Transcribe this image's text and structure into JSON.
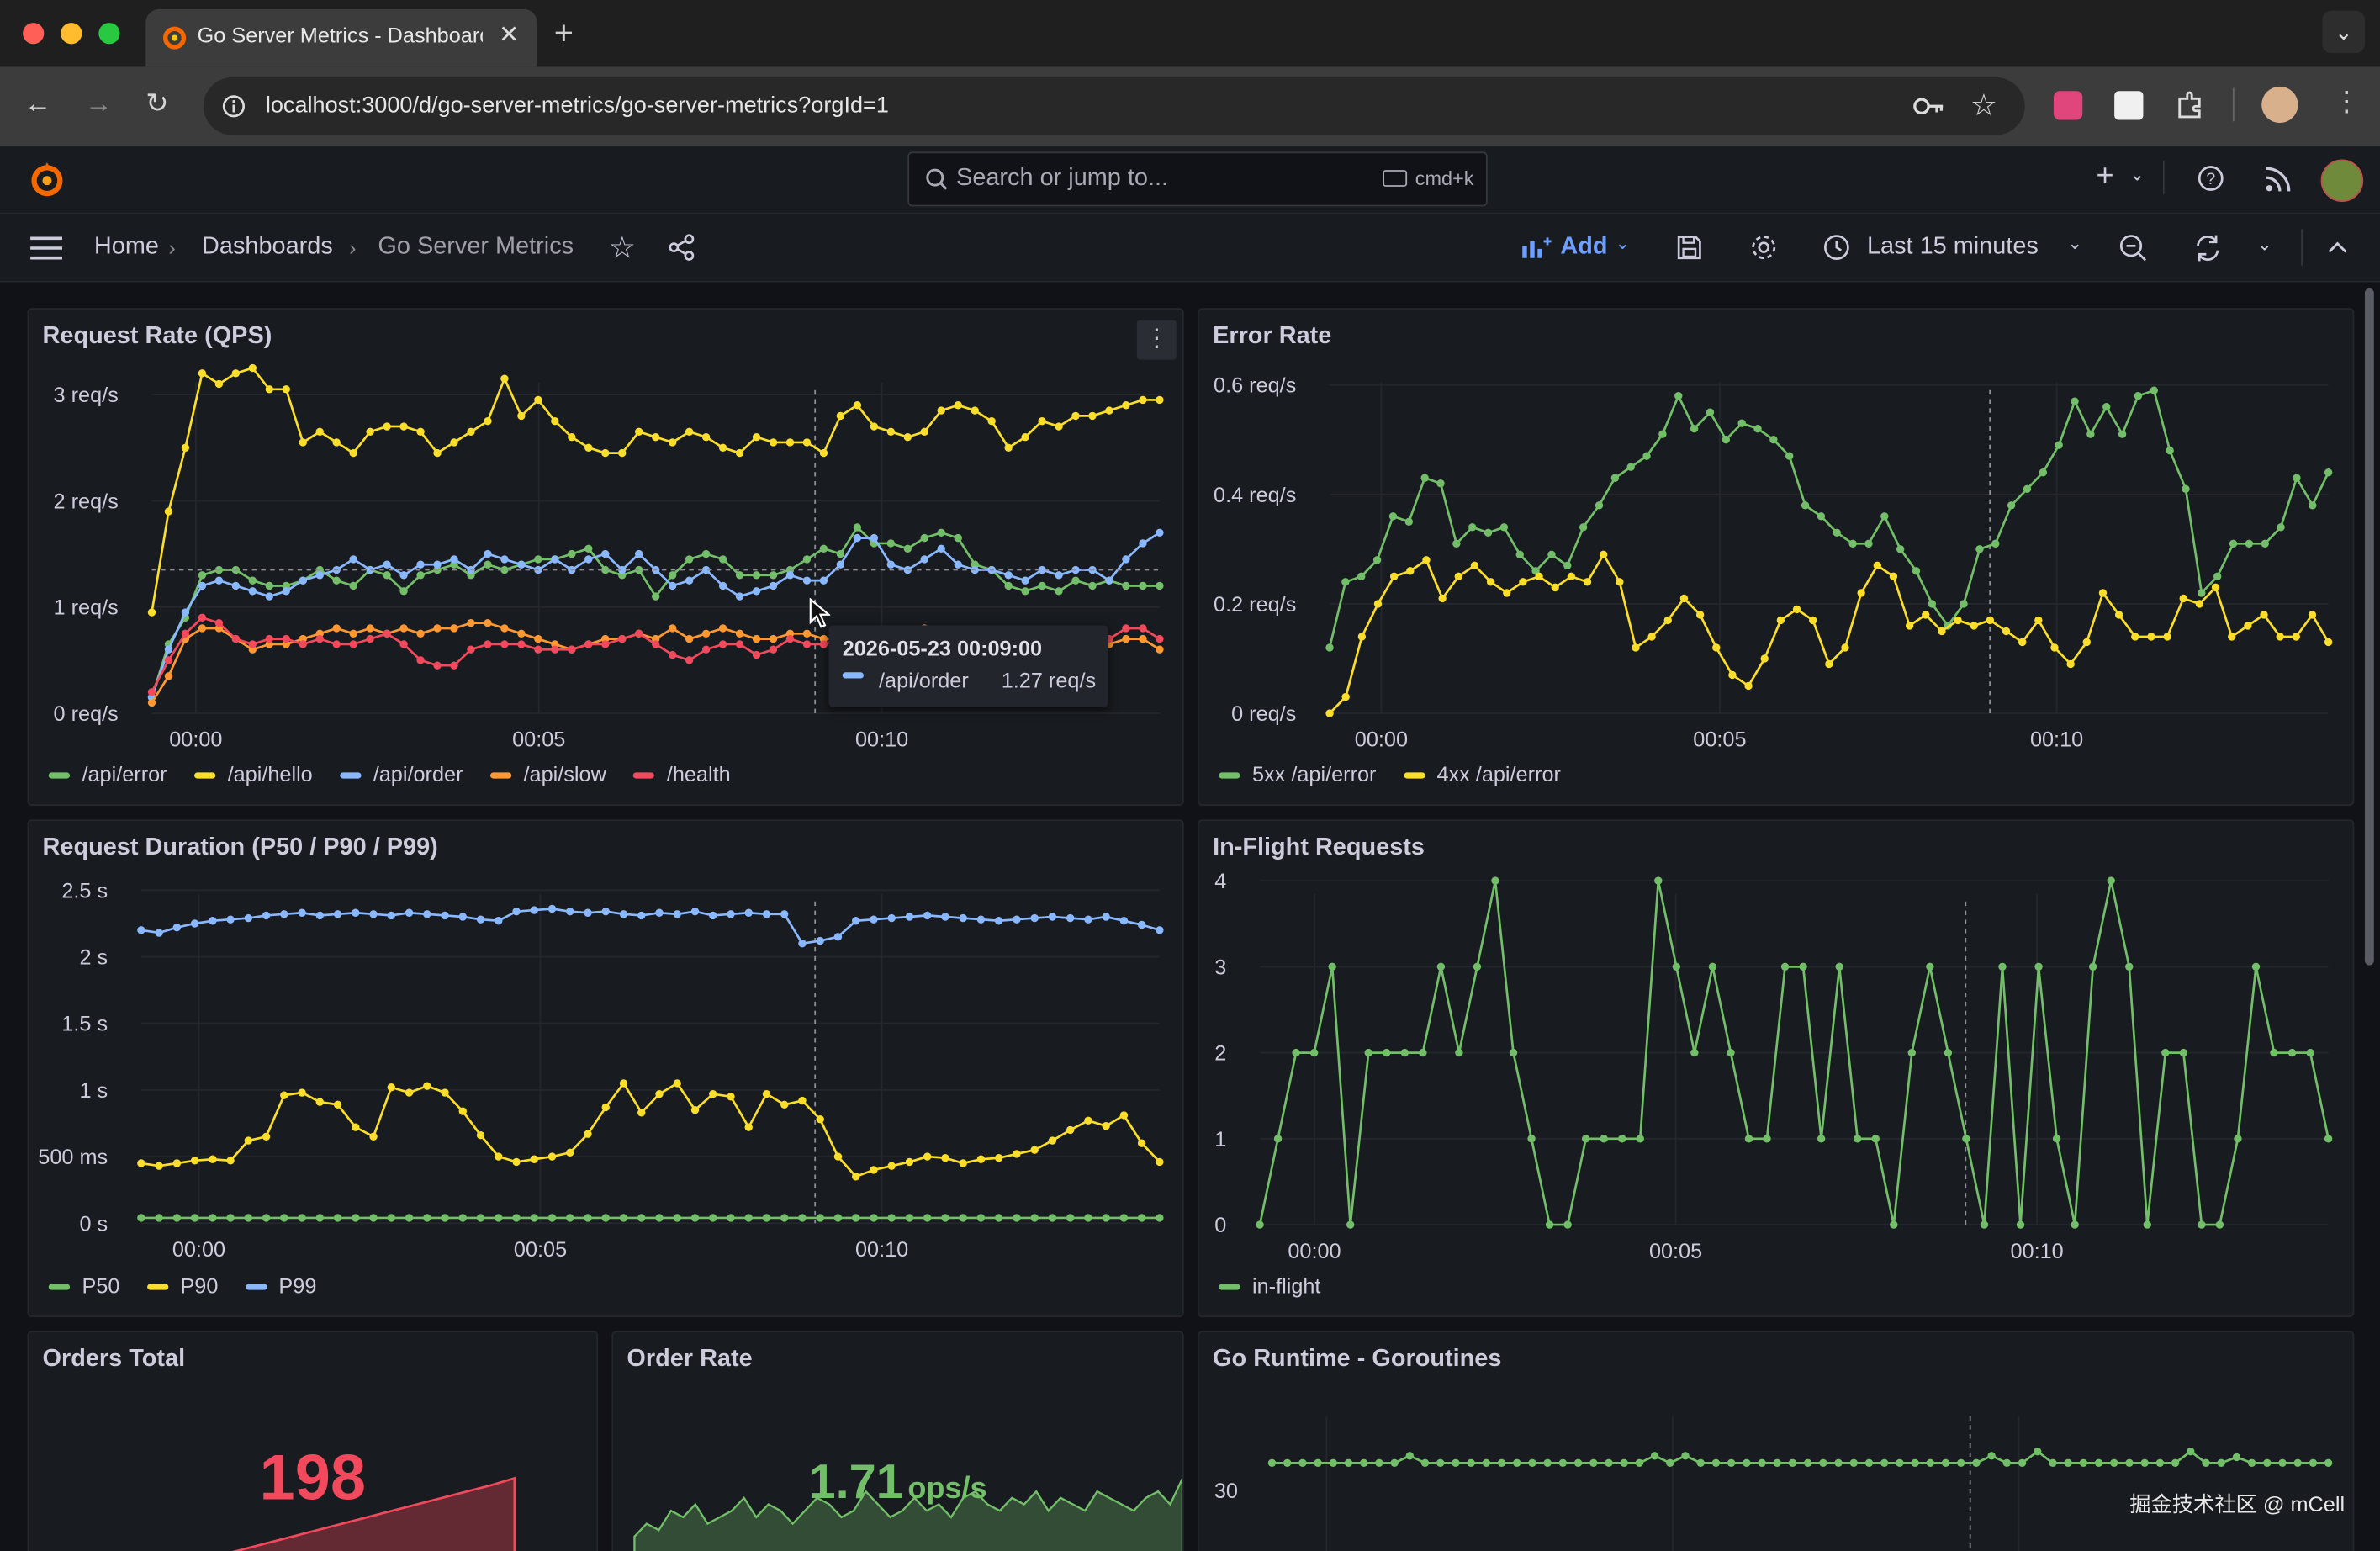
{
  "browser": {
    "tab_title": "Go Server Metrics - Dashboard",
    "url": "localhost:3000/d/go-server-metrics/go-server-metrics?orgId=1"
  },
  "grafana": {
    "search_placeholder": "Search or jump to...",
    "search_shortcut": "cmd+k",
    "breadcrumb": [
      {
        "label": "Home"
      },
      {
        "label": "Dashboards"
      },
      {
        "label": "Go Server Metrics"
      }
    ],
    "add_label": "Add",
    "time_range": "Last 15 minutes"
  },
  "panels": {
    "request_rate": {
      "title": "Request Rate (QPS)"
    },
    "error_rate": {
      "title": "Error Rate"
    },
    "duration": {
      "title": "Request Duration (P50 / P90 / P99)"
    },
    "inflight": {
      "title": "In-Flight Requests"
    },
    "orders_total": {
      "title": "Orders Total",
      "value": "198"
    },
    "order_rate": {
      "title": "Order Rate",
      "value": "1.71",
      "unit": "ops/s"
    },
    "goroutines": {
      "title": "Go Runtime - Goroutines"
    }
  },
  "tooltip": {
    "time": "2026-05-23 00:09:00",
    "series": "/api/order",
    "value": "1.27 req/s"
  },
  "watermark": "掘金技术社区 @ mCell",
  "colors": {
    "green": "#73bf69",
    "yellow": "#fade2a",
    "blue": "#8ab8ff",
    "orange": "#ff9830",
    "red": "#f2495c"
  },
  "chart_data": [
    {
      "id": "request_rate",
      "type": "line",
      "title": "Request Rate (QPS)",
      "x_labels": [
        "00:00",
        "00:05",
        "00:10"
      ],
      "y_ticks": [
        "0 req/s",
        "1 req/s",
        "2 req/s",
        "3 req/s"
      ],
      "ylim": [
        0,
        3.4
      ],
      "legend": "bottom-left",
      "series": [
        {
          "name": "/api/hello",
          "color": "#fade2a",
          "values": [
            0.95,
            1.9,
            2.5,
            3.2,
            3.1,
            3.2,
            3.25,
            3.05,
            3.05,
            2.55,
            2.65,
            2.55,
            2.45,
            2.65,
            2.7,
            2.7,
            2.65,
            2.45,
            2.55,
            2.65,
            2.75,
            3.15,
            2.8,
            2.95,
            2.75,
            2.6,
            2.5,
            2.45,
            2.45,
            2.65,
            2.6,
            2.55,
            2.65,
            2.6,
            2.5,
            2.45,
            2.6,
            2.55,
            2.55,
            2.55,
            2.45,
            2.8,
            2.9,
            2.7,
            2.65,
            2.6,
            2.65,
            2.85,
            2.9,
            2.85,
            2.75,
            2.5,
            2.6,
            2.75,
            2.7,
            2.8,
            2.8,
            2.85,
            2.9,
            2.95,
            2.95
          ]
        },
        {
          "name": "/api/error",
          "color": "#73bf69",
          "values": [
            0.15,
            0.65,
            0.9,
            1.3,
            1.35,
            1.35,
            1.25,
            1.2,
            1.2,
            1.25,
            1.35,
            1.25,
            1.2,
            1.35,
            1.3,
            1.15,
            1.3,
            1.35,
            1.4,
            1.3,
            1.4,
            1.35,
            1.4,
            1.45,
            1.45,
            1.5,
            1.55,
            1.35,
            1.3,
            1.35,
            1.1,
            1.3,
            1.45,
            1.5,
            1.45,
            1.3,
            1.3,
            1.3,
            1.35,
            1.45,
            1.55,
            1.5,
            1.75,
            1.6,
            1.6,
            1.55,
            1.65,
            1.7,
            1.65,
            1.4,
            1.35,
            1.2,
            1.15,
            1.2,
            1.15,
            1.25,
            1.2,
            1.25,
            1.2,
            1.2,
            1.2
          ]
        },
        {
          "name": "/api/order",
          "color": "#8ab8ff",
          "values": [
            0.15,
            0.6,
            0.95,
            1.2,
            1.25,
            1.2,
            1.15,
            1.1,
            1.15,
            1.25,
            1.3,
            1.35,
            1.45,
            1.35,
            1.4,
            1.3,
            1.4,
            1.4,
            1.45,
            1.35,
            1.5,
            1.45,
            1.4,
            1.35,
            1.45,
            1.35,
            1.45,
            1.5,
            1.35,
            1.5,
            1.35,
            1.2,
            1.25,
            1.35,
            1.2,
            1.1,
            1.15,
            1.2,
            1.3,
            1.25,
            1.25,
            1.4,
            1.65,
            1.65,
            1.4,
            1.35,
            1.45,
            1.55,
            1.4,
            1.35,
            1.35,
            1.3,
            1.25,
            1.35,
            1.3,
            1.35,
            1.35,
            1.25,
            1.45,
            1.6,
            1.7
          ]
        },
        {
          "name": "/api/slow",
          "color": "#ff9830",
          "values": [
            0.1,
            0.35,
            0.7,
            0.8,
            0.8,
            0.7,
            0.6,
            0.65,
            0.65,
            0.7,
            0.75,
            0.8,
            0.75,
            0.8,
            0.75,
            0.8,
            0.75,
            0.8,
            0.8,
            0.85,
            0.85,
            0.8,
            0.75,
            0.7,
            0.65,
            0.6,
            0.65,
            0.7,
            0.7,
            0.75,
            0.7,
            0.8,
            0.7,
            0.75,
            0.8,
            0.75,
            0.7,
            0.7,
            0.75,
            0.75,
            0.7,
            0.7,
            0.65,
            0.75,
            0.7,
            0.75,
            0.8,
            0.75,
            0.7,
            0.7,
            0.75,
            0.65,
            0.65,
            0.7,
            0.7,
            0.75,
            0.7,
            0.65,
            0.7,
            0.7,
            0.6
          ]
        },
        {
          "name": "/health",
          "color": "#f2495c",
          "values": [
            0.2,
            0.5,
            0.75,
            0.9,
            0.85,
            0.7,
            0.65,
            0.7,
            0.7,
            0.65,
            0.7,
            0.65,
            0.65,
            0.7,
            0.75,
            0.65,
            0.5,
            0.45,
            0.45,
            0.6,
            0.65,
            0.65,
            0.65,
            0.6,
            0.6,
            0.6,
            0.65,
            0.65,
            0.7,
            0.75,
            0.65,
            0.55,
            0.5,
            0.6,
            0.65,
            0.65,
            0.55,
            0.6,
            0.7,
            0.65,
            0.65,
            0.7,
            0.6,
            0.65,
            0.6,
            0.65,
            0.75,
            0.7,
            0.6,
            0.6,
            0.65,
            0.6,
            0.75,
            0.7,
            0.65,
            0.7,
            0.65,
            0.7,
            0.8,
            0.8,
            0.7
          ]
        }
      ]
    },
    {
      "id": "error_rate",
      "type": "line",
      "title": "Error Rate",
      "x_labels": [
        "00:00",
        "00:05",
        "00:10"
      ],
      "y_ticks": [
        "0 req/s",
        "0.2 req/s",
        "0.4 req/s",
        "0.6 req/s"
      ],
      "ylim": [
        0,
        0.66
      ],
      "legend": "bottom-left",
      "series": [
        {
          "name": "5xx /api/error",
          "color": "#73bf69",
          "values": [
            0.12,
            0.24,
            0.25,
            0.28,
            0.36,
            0.35,
            0.43,
            0.42,
            0.31,
            0.34,
            0.33,
            0.34,
            0.29,
            0.26,
            0.29,
            0.27,
            0.34,
            0.38,
            0.43,
            0.45,
            0.47,
            0.51,
            0.58,
            0.52,
            0.55,
            0.5,
            0.53,
            0.52,
            0.5,
            0.47,
            0.38,
            0.36,
            0.33,
            0.31,
            0.31,
            0.36,
            0.3,
            0.26,
            0.2,
            0.16,
            0.2,
            0.3,
            0.31,
            0.38,
            0.41,
            0.44,
            0.49,
            0.57,
            0.51,
            0.56,
            0.51,
            0.58,
            0.59,
            0.48,
            0.41,
            0.22,
            0.25,
            0.31,
            0.31,
            0.31,
            0.34,
            0.43,
            0.38,
            0.44
          ]
        },
        {
          "name": "4xx /api/error",
          "color": "#fade2a",
          "values": [
            0,
            0.03,
            0.14,
            0.2,
            0.25,
            0.26,
            0.28,
            0.21,
            0.25,
            0.27,
            0.24,
            0.22,
            0.24,
            0.25,
            0.23,
            0.25,
            0.24,
            0.29,
            0.24,
            0.12,
            0.14,
            0.17,
            0.21,
            0.18,
            0.12,
            0.07,
            0.05,
            0.1,
            0.17,
            0.19,
            0.17,
            0.09,
            0.12,
            0.22,
            0.27,
            0.25,
            0.16,
            0.18,
            0.15,
            0.17,
            0.16,
            0.17,
            0.15,
            0.13,
            0.17,
            0.12,
            0.09,
            0.13,
            0.22,
            0.18,
            0.14,
            0.14,
            0.14,
            0.21,
            0.2,
            0.23,
            0.14,
            0.16,
            0.18,
            0.14,
            0.14,
            0.18,
            0.13
          ]
        }
      ]
    },
    {
      "id": "duration",
      "type": "line",
      "title": "Request Duration (P50 / P90 / P99)",
      "x_labels": [
        "00:00",
        "00:05",
        "00:10"
      ],
      "y_ticks": [
        "0 s",
        "500 ms",
        "1 s",
        "1.5 s",
        "2 s",
        "2.5 s"
      ],
      "ylim": [
        0,
        2.7
      ],
      "legend": "bottom-left",
      "series": [
        {
          "name": "P50",
          "color": "#73bf69",
          "values": [
            0.04,
            0.04,
            0.04,
            0.04,
            0.04,
            0.04,
            0.04,
            0.04,
            0.04,
            0.04,
            0.04,
            0.04,
            0.04,
            0.04,
            0.04,
            0.04,
            0.04,
            0.04,
            0.04,
            0.04,
            0.04,
            0.04,
            0.04,
            0.04,
            0.04,
            0.04,
            0.04,
            0.04,
            0.04,
            0.04,
            0.04,
            0.04,
            0.04,
            0.04,
            0.04,
            0.04,
            0.04,
            0.04,
            0.04,
            0.04,
            0.04,
            0.04,
            0.04,
            0.04,
            0.04,
            0.04,
            0.04,
            0.04,
            0.04,
            0.04,
            0.04,
            0.04,
            0.04,
            0.04,
            0.04,
            0.04,
            0.04,
            0.04
          ]
        },
        {
          "name": "P90",
          "color": "#fade2a",
          "values": [
            0.45,
            0.43,
            0.45,
            0.47,
            0.48,
            0.47,
            0.62,
            0.65,
            0.96,
            0.98,
            0.91,
            0.89,
            0.72,
            0.65,
            1.02,
            0.98,
            1.03,
            0.98,
            0.84,
            0.66,
            0.5,
            0.46,
            0.48,
            0.5,
            0.53,
            0.67,
            0.87,
            1.05,
            0.83,
            0.97,
            1.05,
            0.85,
            0.97,
            0.95,
            0.72,
            0.97,
            0.89,
            0.92,
            0.78,
            0.5,
            0.35,
            0.4,
            0.43,
            0.46,
            0.5,
            0.49,
            0.45,
            0.48,
            0.49,
            0.52,
            0.55,
            0.62,
            0.7,
            0.77,
            0.73,
            0.81,
            0.6,
            0.46
          ]
        },
        {
          "name": "P99",
          "color": "#8ab8ff",
          "values": [
            2.2,
            2.18,
            2.22,
            2.25,
            2.27,
            2.28,
            2.29,
            2.31,
            2.32,
            2.33,
            2.31,
            2.32,
            2.33,
            2.32,
            2.31,
            2.33,
            2.32,
            2.31,
            2.3,
            2.28,
            2.27,
            2.34,
            2.35,
            2.36,
            2.34,
            2.33,
            2.34,
            2.32,
            2.31,
            2.33,
            2.32,
            2.34,
            2.31,
            2.32,
            2.33,
            2.32,
            2.32,
            2.1,
            2.12,
            2.15,
            2.27,
            2.28,
            2.29,
            2.3,
            2.31,
            2.3,
            2.29,
            2.28,
            2.27,
            2.28,
            2.29,
            2.3,
            2.29,
            2.28,
            2.3,
            2.27,
            2.24,
            2.2
          ]
        }
      ]
    },
    {
      "id": "inflight",
      "type": "line",
      "title": "In-Flight Requests",
      "x_labels": [
        "00:00",
        "00:05",
        "00:10"
      ],
      "y_ticks": [
        "0",
        "1",
        "2",
        "3",
        "4"
      ],
      "ylim": [
        0,
        4.2
      ],
      "legend": "bottom-left",
      "series": [
        {
          "name": "in-flight",
          "color": "#73bf69",
          "values": [
            0,
            1,
            2,
            2,
            3,
            0,
            2,
            2,
            2,
            2,
            3,
            2,
            3,
            4,
            2,
            1,
            0,
            0,
            1,
            1,
            1,
            1,
            4,
            3,
            2,
            3,
            2,
            1,
            1,
            3,
            3,
            1,
            3,
            1,
            1,
            0,
            2,
            3,
            2,
            1,
            0,
            3,
            0,
            3,
            1,
            0,
            3,
            4,
            3,
            0,
            2,
            2,
            0,
            0,
            1,
            3,
            2,
            2,
            2,
            1
          ]
        }
      ]
    },
    {
      "id": "orders_total",
      "type": "area",
      "title": "Orders Total",
      "values": [
        0,
        14,
        28,
        40,
        52,
        64,
        76,
        88,
        100,
        112,
        124,
        136,
        148,
        160,
        172,
        184,
        198
      ]
    },
    {
      "id": "order_rate",
      "type": "area",
      "title": "Order Rate",
      "values": [
        1.2,
        1.4,
        1.3,
        1.6,
        1.5,
        1.7,
        1.4,
        1.5,
        1.6,
        1.8,
        1.5,
        1.7,
        1.6,
        1.4,
        1.6,
        1.8,
        1.7,
        1.5,
        1.6,
        1.9,
        1.7,
        1.5,
        1.6,
        1.8,
        1.6,
        1.7,
        1.5,
        1.8,
        1.9,
        1.7,
        1.6,
        1.8,
        1.7,
        1.9,
        1.6,
        1.8,
        1.7,
        1.6,
        1.9,
        1.8,
        1.7,
        1.6,
        1.8,
        1.9,
        1.7,
        2.1
      ]
    },
    {
      "id": "goroutines",
      "type": "line",
      "title": "Go Runtime - Goroutines",
      "y_ticks": [
        "30"
      ],
      "ylim": [
        28,
        36
      ],
      "series": [
        {
          "name": "goroutines",
          "color": "#73bf69",
          "values": [
            32,
            32,
            32,
            32,
            32,
            32,
            32,
            32,
            32,
            32.5,
            32,
            32,
            32,
            32,
            32,
            32,
            32,
            32,
            32,
            32,
            32,
            32,
            32,
            32,
            32,
            32.5,
            32,
            32.5,
            32,
            32,
            32,
            32,
            32,
            32,
            32,
            32,
            32,
            32,
            32,
            32,
            32,
            32,
            32,
            32,
            32,
            32,
            32,
            32.5,
            32,
            32,
            32.8,
            32,
            32,
            32,
            32,
            32,
            32,
            32,
            32,
            32,
            32.8,
            32,
            32,
            32.4,
            32,
            32,
            32,
            32,
            32,
            32
          ]
        }
      ]
    }
  ]
}
